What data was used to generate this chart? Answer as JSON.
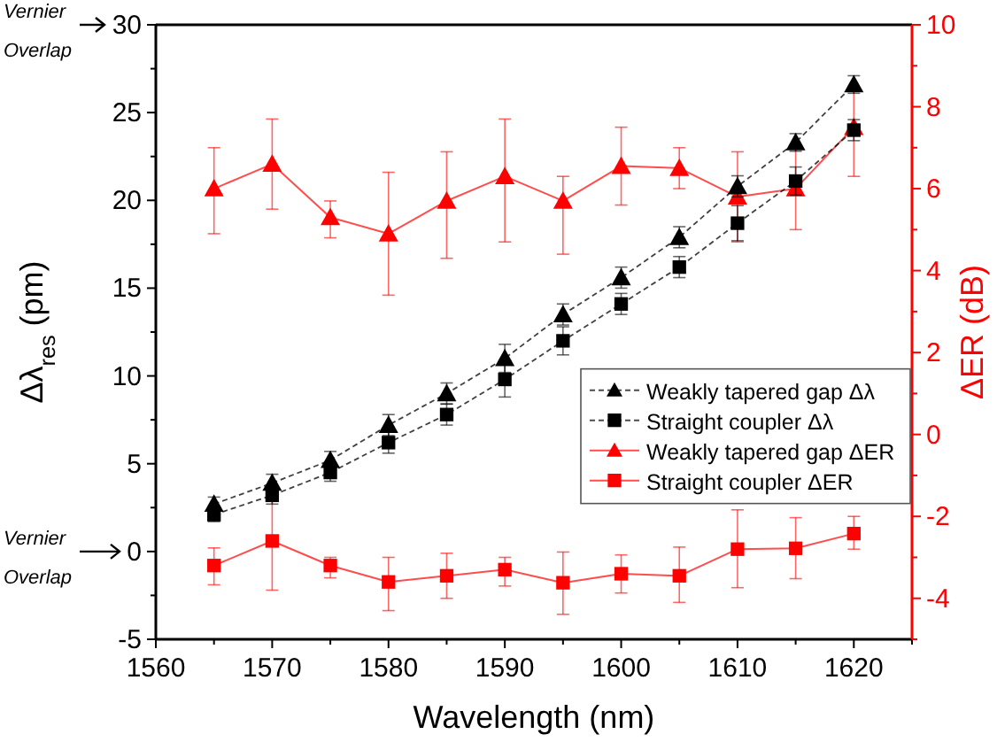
{
  "chart_data": {
    "type": "line",
    "xlabel": "Wavelength (nm)",
    "ylabel": "Δλ$_{res}$ (pm)",
    "y2label": "ΔER (dB)",
    "x": [
      1565,
      1570,
      1575,
      1580,
      1585,
      1590,
      1595,
      1600,
      1605,
      1610,
      1615,
      1620
    ],
    "xlim": [
      1560,
      1625
    ],
    "xticks": [
      1560,
      {
        "value": 1565,
        "label": null
      },
      1570,
      {
        "value": 1575,
        "label": null
      },
      1580,
      {
        "value": 1585,
        "label": null
      },
      1590,
      {
        "value": 1595,
        "label": null
      },
      1600,
      {
        "value": 1605,
        "label": null
      },
      1610,
      {
        "value": 1615,
        "label": null
      },
      1620,
      {
        "value": 1625,
        "label": null
      }
    ],
    "ylim": [
      -5,
      30
    ],
    "yticks": [
      -5,
      {
        "value": -2.5,
        "label": null
      },
      0,
      {
        "value": 2.5,
        "label": null
      },
      5,
      {
        "value": 7.5,
        "label": null
      },
      10,
      {
        "value": 12.5,
        "label": null
      },
      15,
      {
        "value": 17.5,
        "label": null
      },
      20,
      {
        "value": 22.5,
        "label": null
      },
      25,
      {
        "value": 27.5,
        "label": null
      },
      30
    ],
    "y2lim": [
      -5,
      10
    ],
    "y2ticks": [
      {
        "value": -5,
        "label": null
      },
      -4,
      {
        "value": -3,
        "label": null
      },
      -2,
      {
        "value": -1,
        "label": null
      },
      0,
      {
        "value": 1,
        "label": null
      },
      2,
      {
        "value": 3,
        "label": null
      },
      4,
      {
        "value": 5,
        "label": null
      },
      6,
      {
        "value": 7,
        "label": null
      },
      8,
      {
        "value": 9,
        "label": null
      },
      10
    ],
    "legend": "right",
    "grid": false,
    "series": [
      {
        "name": "Weakly tapered gap Δλ",
        "color": "#000000",
        "marker": "triangle",
        "line_style": "dashed",
        "values": [
          2.7,
          3.9,
          5.2,
          7.2,
          9.0,
          11.0,
          13.5,
          15.6,
          17.9,
          20.8,
          23.3,
          26.6
        ],
        "errors": [
          0.4,
          0.5,
          0.5,
          0.6,
          0.6,
          0.8,
          0.6,
          0.6,
          0.6,
          0.6,
          0.5,
          0.5
        ]
      },
      {
        "name": "Straight coupler Δλ",
        "color": "#000000",
        "marker": "square",
        "line_style": "dashed",
        "values": [
          2.1,
          3.2,
          4.5,
          6.2,
          7.8,
          9.8,
          12.0,
          14.1,
          16.2,
          18.7,
          21.1,
          24.0
        ],
        "errors": [
          0.4,
          0.5,
          0.5,
          0.6,
          0.6,
          1.0,
          0.8,
          0.6,
          0.6,
          1.0,
          0.8,
          0.6
        ]
      },
      {
        "name": "Weakly tapered gap ΔER",
        "color": "#ff0000",
        "marker": "triangle",
        "line_style": "solid",
        "axis": "y2",
        "values": [
          6.0,
          6.6,
          5.3,
          4.9,
          5.7,
          6.3,
          5.7,
          6.55,
          6.5,
          5.8,
          6.0,
          7.5
        ],
        "errors": [
          [
            4.9,
            7.0
          ],
          [
            5.5,
            7.7
          ],
          [
            4.8,
            5.7
          ],
          [
            3.4,
            6.4
          ],
          [
            4.3,
            6.9
          ],
          [
            4.7,
            7.7
          ],
          [
            4.4,
            6.3
          ],
          [
            5.6,
            7.5
          ],
          [
            6.0,
            7.0
          ],
          [
            4.7,
            6.9
          ],
          [
            5.0,
            7.0
          ],
          [
            6.3,
            8.45
          ]
        ]
      },
      {
        "name": "Straight coupler ΔER",
        "color": "#ff0000",
        "marker": "square",
        "line_style": "solid",
        "axis": "y2",
        "values": [
          -3.2,
          -2.6,
          -3.2,
          -3.6,
          -3.45,
          -3.3,
          -3.62,
          -3.4,
          -3.45,
          -2.8,
          -2.78,
          -2.42
        ],
        "errors": [
          [
            -3.67,
            -2.77
          ],
          [
            -3.8,
            -1.6
          ],
          [
            -3.5,
            -3.0
          ],
          [
            -4.3,
            -3.0
          ],
          [
            -4.0,
            -2.9
          ],
          [
            -3.7,
            -3.0
          ],
          [
            -4.39,
            -2.87
          ],
          [
            -3.87,
            -2.94
          ],
          [
            -4.1,
            -2.75
          ],
          [
            -3.74,
            -1.84
          ],
          [
            -3.52,
            -2.03
          ],
          [
            -2.8,
            -2.0
          ]
        ]
      }
    ],
    "annotations": [
      "Vernier Overlap",
      "Vernier Overlap"
    ]
  }
}
